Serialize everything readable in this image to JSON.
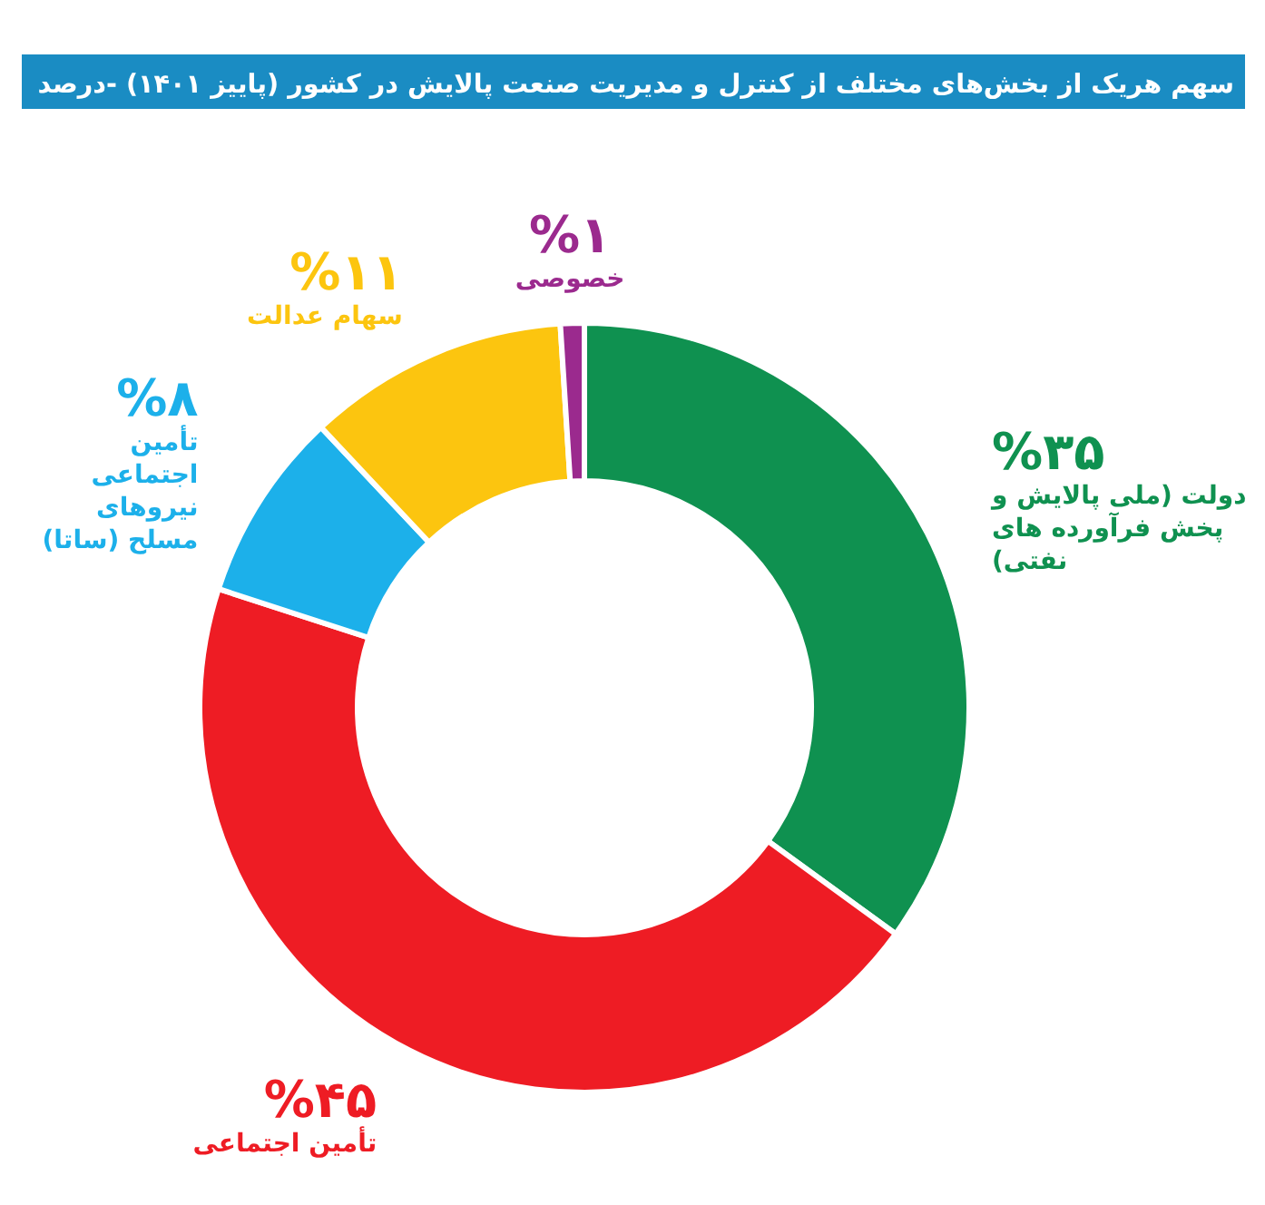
{
  "chart_data": {
    "type": "donut",
    "title": "سهم هریک از بخش‌های مختلف از کنترل و مدیریت صنعت پالایش در کشور (پاییز ۱۴۰۱) -درصد",
    "categories": [
      "دولت (ملی پالایش و پخش فرآورده های نفتی)",
      "تأمین اجتماعی",
      "تأمین اجتماعی نیروهای مسلح (ساتا)",
      "سهام عدالت",
      "خصوصی"
    ],
    "values": [
      35,
      45,
      8,
      11,
      1
    ],
    "colors": [
      "#0f9150",
      "#ee1c24",
      "#1cb0ea",
      "#fcc50f",
      "#9b2a8e"
    ],
    "value_labels": [
      "%۳۵",
      "%۴۵",
      "%۸",
      "%۱۱",
      "%۱"
    ]
  }
}
